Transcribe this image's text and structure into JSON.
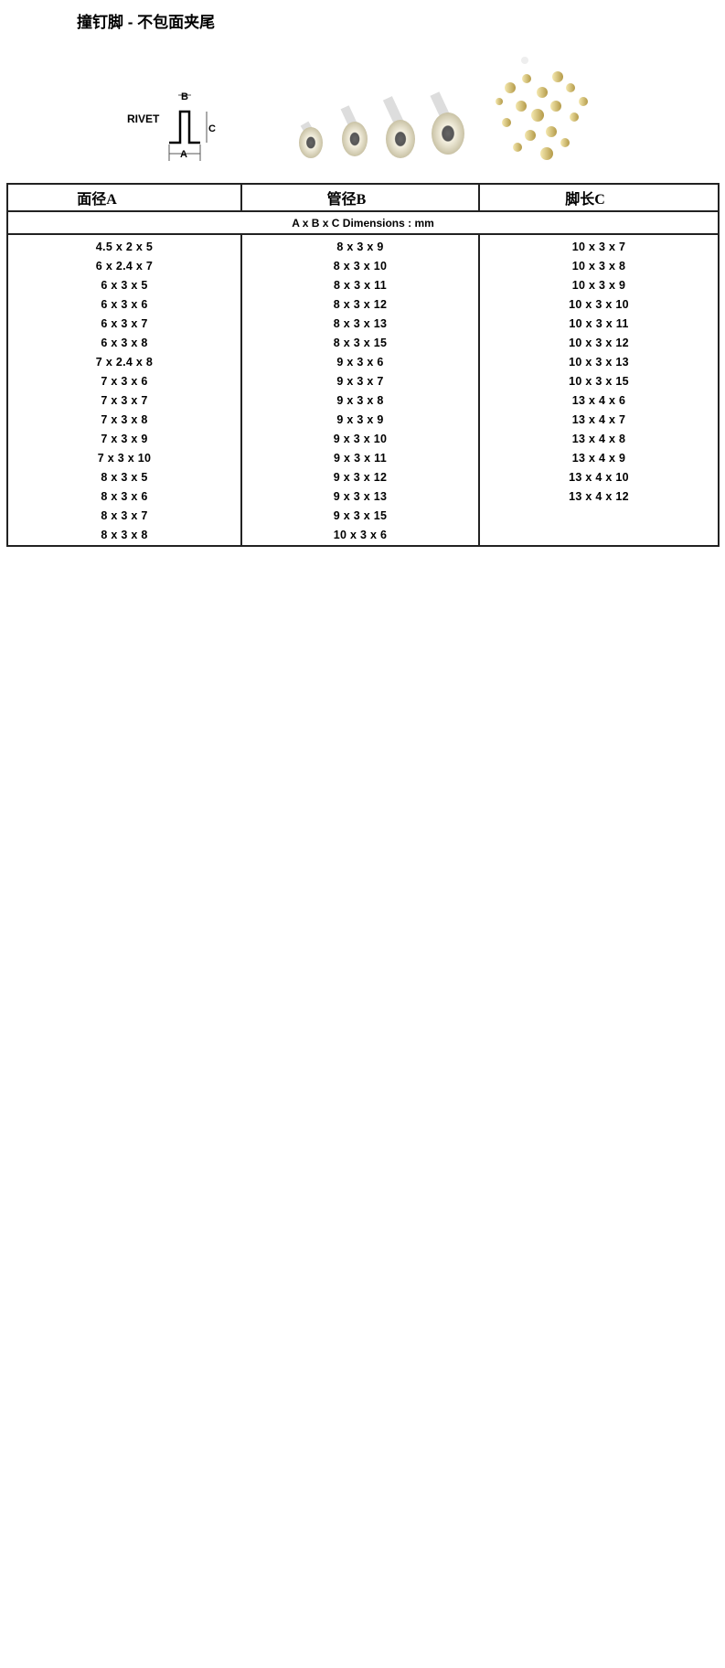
{
  "title": "撞钉脚 - 不包面夹尾",
  "diagram": {
    "label": "RIVET",
    "a": "A",
    "b": "B",
    "c": "C"
  },
  "table": {
    "headers": [
      "面径A",
      "管径B",
      "脚长C"
    ],
    "dimensions_note": "A x B x C   Dimensions : mm",
    "columns": [
      [
        "4.5 x 2 x 5",
        "6 x 2.4 x 7",
        "6 x 3 x 5",
        "6 x 3 x 6",
        "6 x 3 x 7",
        "6 x 3 x 8",
        "7 x 2.4 x 8",
        "7 x 3 x 6",
        "7 x 3 x 7",
        "7 x 3 x 8",
        "7 x 3 x 9",
        "7 x 3 x 10",
        "8 x 3 x 5",
        "8 x 3 x 6",
        "8 x 3 x 7",
        "8 x 3 x 8"
      ],
      [
        "8 x 3 x 9",
        "8 x 3 x 10",
        "8 x 3 x 11",
        "8 x 3 x 12",
        "8 x 3 x 13",
        "8 x 3 x 15",
        "9 x 3 x 6",
        "9 x 3 x 7",
        "9 x 3 x 8",
        "9 x 3 x 9",
        "9 x 3 x 10",
        "9 x 3 x 11",
        "9 x 3 x 12",
        "9 x 3 x 13",
        "9 x 3 x 15",
        "10 x 3 x 6"
      ],
      [
        "10 x 3 x 7",
        "10 x 3 x 8",
        "10 x 3 x 9",
        "10 x 3 x 10",
        "10 x 3 x 11",
        "10 x 3 x 12",
        "10 x 3 x 13",
        "10 x 3 x 15",
        "13 x 4 x 6",
        "13 x 4 x 7",
        "13 x 4 x 8",
        "13 x 4 x 9",
        "13 x 4 x 10",
        "13 x 4 x 12"
      ]
    ]
  }
}
